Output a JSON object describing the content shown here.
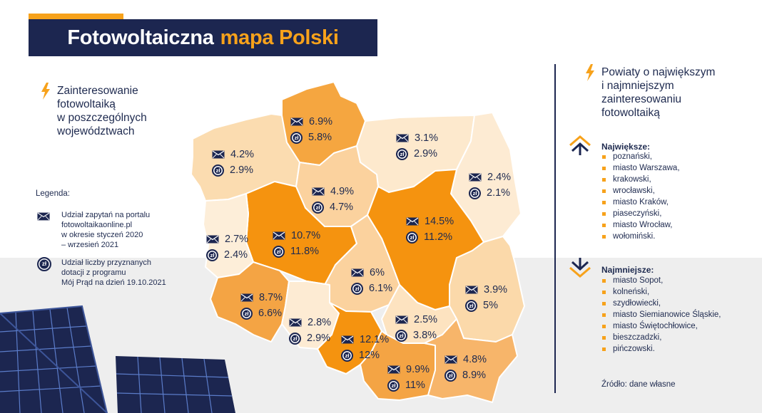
{
  "title": {
    "part1": "Fotowoltaiczna",
    "part2": "mapa Polski"
  },
  "left_heading": {
    "line1": "Zainteresowanie",
    "line2": "fotowoltaiką",
    "line3": "w poszczególnych",
    "line4": "województwach"
  },
  "legend": {
    "title": "Legenda:",
    "item1": {
      "icon": "envelope-icon",
      "line1": "Udział zapytań na portalu",
      "line2": "fotowoltaikaonline.pl",
      "line3": "w okresie styczeń 2020",
      "line4": "– wrzesień 2021"
    },
    "item2": {
      "icon": "coin-zl-icon",
      "coin_text": "zł",
      "line1": "Udział liczby przyznanych",
      "line2": "dotacji z programu",
      "line3": "Mój Prąd na dzień 19.10.2021"
    }
  },
  "regions": [
    {
      "id": "pomorskie",
      "inquiries": "6.9%",
      "subsidies": "5.8%",
      "fill": "#f5a640"
    },
    {
      "id": "zachodniopomorskie",
      "inquiries": "4.2%",
      "subsidies": "2.9%",
      "fill": "#fbdcb0"
    },
    {
      "id": "warminsko-mazurskie",
      "inquiries": "3.1%",
      "subsidies": "2.9%",
      "fill": "#fde9cd"
    },
    {
      "id": "podlaskie",
      "inquiries": "2.4%",
      "subsidies": "2.1%",
      "fill": "#fdebd3"
    },
    {
      "id": "kujawsko-pomorskie",
      "inquiries": "4.9%",
      "subsidies": "4.7%",
      "fill": "#fbd29e"
    },
    {
      "id": "wielkopolskie",
      "inquiries": "10.7%",
      "subsidies": "11.8%",
      "fill": "#f5930f"
    },
    {
      "id": "mazowieckie",
      "inquiries": "14.5%",
      "subsidies": "11.2%",
      "fill": "#f5930f"
    },
    {
      "id": "lubuskie",
      "inquiries": "2.7%",
      "subsidies": "2.4%",
      "fill": "#fdeed9"
    },
    {
      "id": "lodzkie",
      "inquiries": "6%",
      "subsidies": "6.1%",
      "fill": "#fbd29e"
    },
    {
      "id": "lubelskie",
      "inquiries": "3.9%",
      "subsidies": "5%",
      "fill": "#fbd9aa"
    },
    {
      "id": "dolnoslaskie",
      "inquiries": "8.7%",
      "subsidies": "6.6%",
      "fill": "#f4a444"
    },
    {
      "id": "opolskie",
      "inquiries": "2.8%",
      "subsidies": "2.9%",
      "fill": "#fdebd3"
    },
    {
      "id": "slaskie",
      "inquiries": "12.1%",
      "subsidies": "12%",
      "fill": "#f5930f"
    },
    {
      "id": "swietokrzyskie",
      "inquiries": "2.5%",
      "subsidies": "3.8%",
      "fill": "#fde3c0"
    },
    {
      "id": "malopolskie",
      "inquiries": "9.9%",
      "subsidies": "11%",
      "fill": "#f4a444"
    },
    {
      "id": "podkarpackie",
      "inquiries": "4.8%",
      "subsidies": "8.9%",
      "fill": "#f7b56a"
    }
  ],
  "right_heading": {
    "line1": "Powiaty o największym",
    "line2": "i najmniejszym",
    "line3": "zainteresowaniu",
    "line4": "fotowoltaiką"
  },
  "largest": {
    "heading": "Największe:",
    "icon": "chevrons-up-icon",
    "items": [
      "poznański,",
      "miasto Warszawa,",
      "krakowski,",
      "wrocławski,",
      "miasto Kraków,",
      "piaseczyński,",
      "miasto Wrocław,",
      "wołomiński."
    ]
  },
  "smallest": {
    "heading": "Najmniejsze:",
    "icon": "chevrons-down-icon",
    "items": [
      "miasto Sopot,",
      "kolneński,",
      "szydłowiecki,",
      "miasto Siemianowice Śląskie,",
      "miasto Świętochłowice,",
      "bieszczadzki,",
      "pińczowski."
    ]
  },
  "source": "Źródło: dane własne",
  "colors": {
    "navy": "#1c2650",
    "accent": "#f7a21b",
    "text": "#1e2a4f"
  }
}
